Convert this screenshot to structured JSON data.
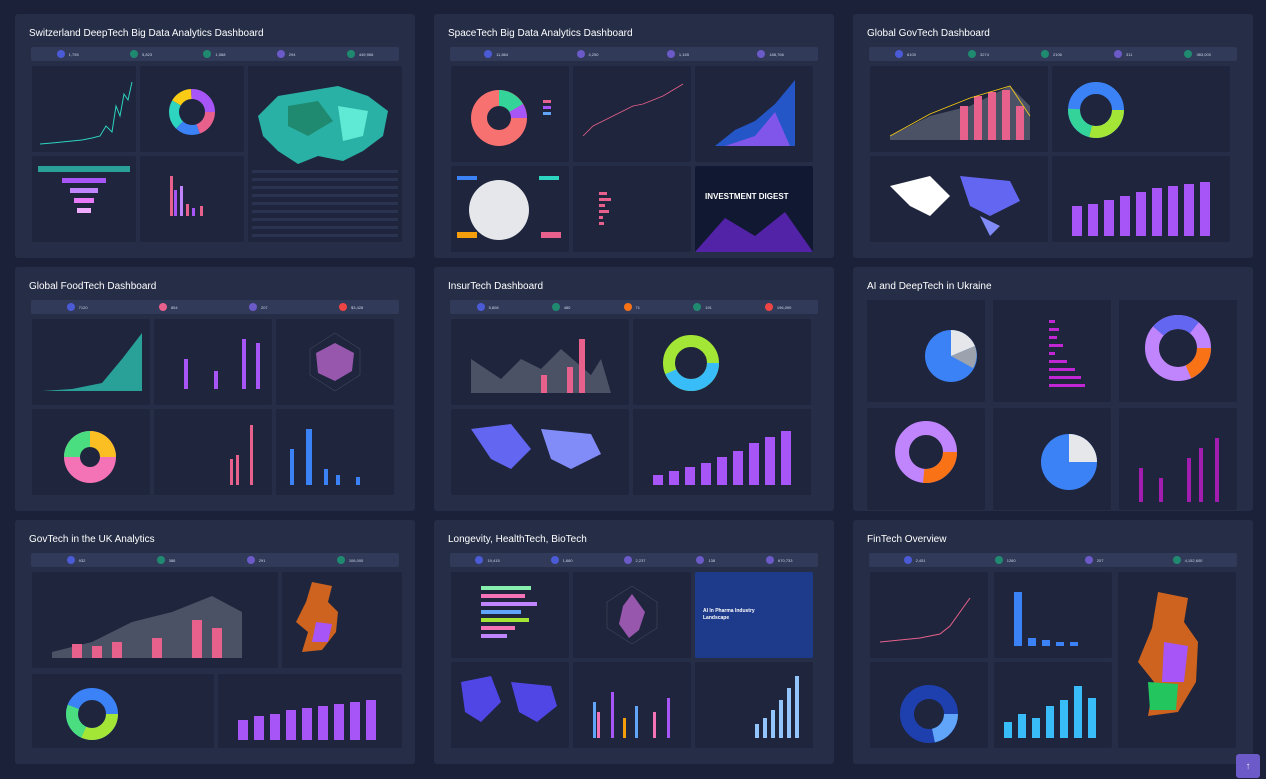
{
  "dashboards": [
    {
      "title": "Switzerland DeepTech Big Data Analytics Dashboard",
      "stats": [
        "1,755",
        "5,823",
        "1,588",
        "294",
        "449,966"
      ]
    },
    {
      "title": "SpaceTech Big Data Analytics Dashboard",
      "stats": [
        "11,864",
        "4,250",
        "1,165",
        "188,766"
      ]
    },
    {
      "title": "Global GovTech Dashboard",
      "stats": [
        "6100",
        "3274",
        "2106",
        "311",
        "383,000"
      ]
    },
    {
      "title": "Global FoodTech Dashboard",
      "stats": [
        "7120",
        "854",
        "207",
        "$3,428"
      ]
    },
    {
      "title": "InsurTech Dashboard",
      "stats": [
        "5,808",
        "480",
        "71",
        "191",
        "196,090"
      ]
    },
    {
      "title": "AI and DeepTech in Ukraine",
      "stats": []
    },
    {
      "title": "GovTech in the UK Analytics",
      "stats": [
        "932",
        "386",
        "291",
        "106,000"
      ]
    },
    {
      "title": "Longevity, HealthTech, BioTech",
      "stats": [
        "19,415",
        "1,660",
        "2,237",
        "138",
        "670,733"
      ]
    },
    {
      "title": "FinTech Overview",
      "stats": [
        "2,451",
        "1260",
        "207",
        "4,152,600"
      ]
    }
  ],
  "digest": {
    "heading": "INVESTMENT DIGEST"
  },
  "pharma": {
    "heading": "AI In Pharma Industry Landscape"
  },
  "colors": {
    "bg": "#1a2138",
    "card": "#262e47",
    "panel": "#1e253c",
    "pink": "#e8618c",
    "purple": "#a855f7",
    "teal": "#2dd4bf",
    "blue": "#3b82f6"
  },
  "icons": [
    "scroll-up-icon"
  ]
}
